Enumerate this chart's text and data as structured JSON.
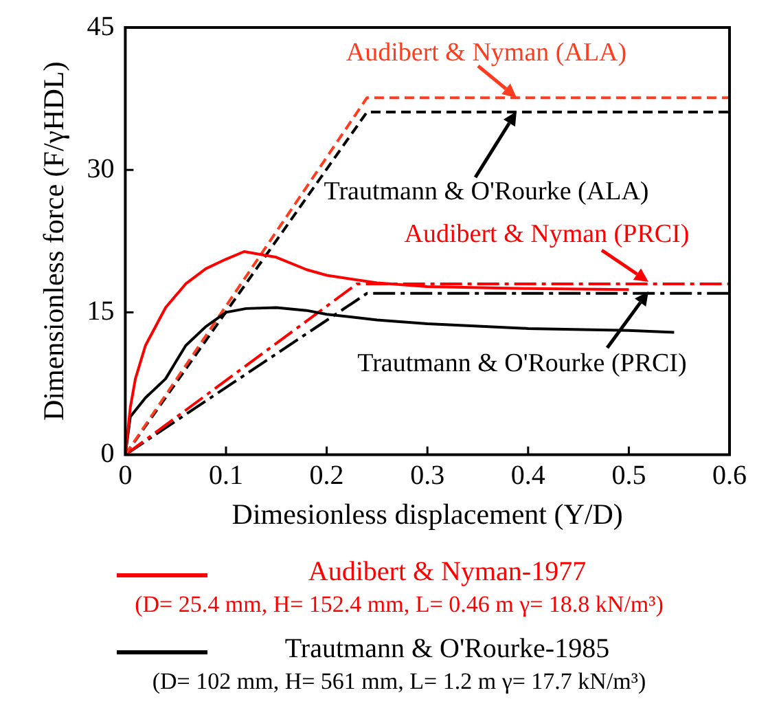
{
  "chart_data": {
    "type": "line",
    "xlabel": "Dimesionless displacement (Y/D)",
    "ylabel": "Dimensionless force (F/γHDL)",
    "xlim": [
      0,
      0.6
    ],
    "xticks": [
      0,
      0.1,
      0.2,
      0.3,
      0.4,
      0.5,
      0.6
    ],
    "ylim": [
      0,
      45
    ],
    "yticks": [
      0,
      15,
      30,
      45
    ],
    "grid": false,
    "legend": "bottom",
    "marker": "none",
    "series": [
      {
        "name": "Audibert & Nyman-1977",
        "color": "#ff0000",
        "line_style": "solid",
        "x": [
          0,
          0.005,
          0.01,
          0.02,
          0.04,
          0.06,
          0.08,
          0.1,
          0.118,
          0.15,
          0.18,
          0.2,
          0.25,
          0.3,
          0.4,
          0.5
        ],
        "values": [
          0,
          5,
          8,
          11.5,
          15.5,
          18,
          19.6,
          20.6,
          21.4,
          20.8,
          19.5,
          18.9,
          18.1,
          17.7,
          17.5,
          17.4
        ]
      },
      {
        "name": "Trautmann & O'Rourke-1985",
        "color": "#000000",
        "line_style": "solid",
        "x": [
          0,
          0.005,
          0.02,
          0.04,
          0.06,
          0.08,
          0.1,
          0.12,
          0.15,
          0.18,
          0.2,
          0.25,
          0.3,
          0.4,
          0.5,
          0.545
        ],
        "values": [
          0,
          4,
          6,
          8,
          11.5,
          13.5,
          15,
          15.4,
          15.5,
          15.2,
          14.8,
          14.2,
          13.8,
          13.3,
          13.1,
          12.9
        ]
      },
      {
        "color": "#ff3c1e",
        "line_style": "dashed",
        "x": [
          0,
          0.24,
          0.6
        ],
        "values": [
          0,
          37.6,
          37.6
        ]
      },
      {
        "color": "#000000",
        "line_style": "dashed",
        "x": [
          0,
          0.24,
          0.6
        ],
        "values": [
          0,
          36.1,
          36.1
        ]
      },
      {
        "color": "#ff0000",
        "line_style": "dashdot",
        "x": [
          0,
          0.23,
          0.6
        ],
        "values": [
          0,
          18,
          18
        ]
      },
      {
        "color": "#000000",
        "line_style": "dashdot",
        "x": [
          0,
          0.24,
          0.6
        ],
        "values": [
          0,
          17,
          17
        ]
      }
    ],
    "annotations": [
      "Audibert & Nyman (ALA)",
      "Trautmann & O'Rourke (ALA)",
      "Audibert & Nyman (PRCI)",
      "Trautmann & O'Rourke (PRCI)",
      "(D= 25.4 mm, H= 152.4 mm, L= 0.46 m γ= 18.8 kN/m³)",
      "(D= 102 mm, H= 561 mm, L= 1.2 m γ= 17.7 kN/m³)"
    ]
  }
}
